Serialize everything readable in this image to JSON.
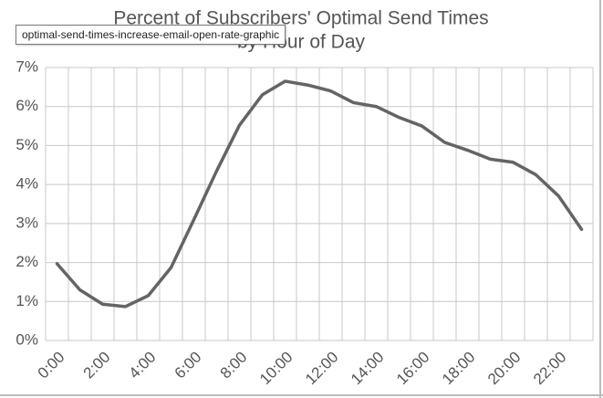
{
  "chart_data": {
    "type": "line",
    "title": "Percent of Subscribers' Optimal Send Times",
    "subtitle": "by Hour of Day",
    "categories": [
      "0:00",
      null,
      "2:00",
      null,
      "4:00",
      null,
      "6:00",
      null,
      "8:00",
      null,
      "10:00",
      null,
      "12:00",
      null,
      "14:00",
      null,
      "16:00",
      null,
      "18:00",
      null,
      "20:00",
      null,
      "22:00",
      null
    ],
    "values": [
      1.97,
      1.3,
      0.93,
      0.87,
      1.15,
      1.87,
      3.1,
      4.35,
      5.52,
      6.3,
      6.65,
      6.55,
      6.4,
      6.1,
      6.0,
      5.72,
      5.5,
      5.08,
      4.88,
      4.65,
      4.57,
      4.25,
      3.7,
      2.85
    ],
    "color": "#646464",
    "ylim": [
      0,
      7
    ],
    "yticks": [
      {
        "value": 0,
        "label": "0%"
      },
      {
        "value": 1,
        "label": "1%"
      },
      {
        "value": 2,
        "label": "2%"
      },
      {
        "value": 3,
        "label": "3%"
      },
      {
        "value": 4,
        "label": "4%"
      },
      {
        "value": 5,
        "label": "5%"
      },
      {
        "value": 6,
        "label": "6%"
      },
      {
        "value": 7,
        "label": "7%"
      }
    ],
    "grid": true
  },
  "tooltip": "optimal-send-times-increase-email-open-rate-graphic"
}
